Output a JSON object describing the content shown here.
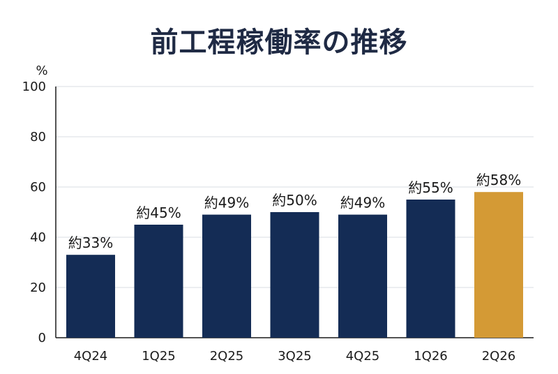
{
  "chart_data": {
    "type": "bar",
    "title": "前工程稼働率の推移",
    "ylabel": "%",
    "xlabel": "",
    "ylim": [
      0,
      100
    ],
    "yticks": [
      0,
      20,
      40,
      60,
      80,
      100
    ],
    "grid": true,
    "categories": [
      "4Q24",
      "1Q25",
      "2Q25",
      "3Q25",
      "4Q25",
      "1Q26",
      "2Q26"
    ],
    "values": [
      33,
      45,
      49,
      50,
      49,
      55,
      58
    ],
    "data_labels": [
      "約33%",
      "約45%",
      "約49%",
      "約50%",
      "約49%",
      "約55%",
      "約58%"
    ],
    "colors": [
      "#142c55",
      "#142c55",
      "#142c55",
      "#142c55",
      "#142c55",
      "#142c55",
      "#d49a35"
    ]
  },
  "colors": {
    "title": "#1f2a44",
    "grid": "#d9dde3",
    "axis": "#1a1a1a"
  }
}
